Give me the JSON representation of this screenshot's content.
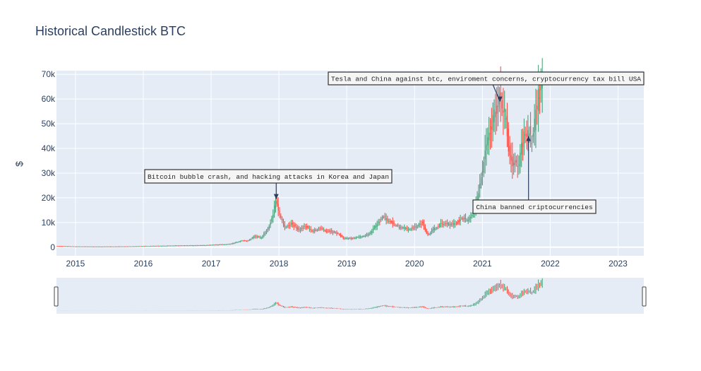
{
  "chart_data": {
    "type": "candlestick",
    "title": "Historical Candlestick BTC",
    "ylabel": "$",
    "xlim": [
      2014.72,
      2023.38
    ],
    "ylim": [
      -3500,
      71500
    ],
    "x_ticks": [
      2015,
      2016,
      2017,
      2018,
      2019,
      2020,
      2021,
      2022,
      2023
    ],
    "x_tick_labels": [
      "2015",
      "2016",
      "2017",
      "2018",
      "2019",
      "2020",
      "2021",
      "2022",
      "2023"
    ],
    "y_ticks": [
      0,
      10000,
      20000,
      30000,
      40000,
      50000,
      60000,
      70000
    ],
    "y_tick_labels": [
      "0",
      "10k",
      "20k",
      "30k",
      "40k",
      "50k",
      "60k",
      "70k"
    ],
    "increasing_color": "#3d9970",
    "decreasing_color": "#ff4136",
    "price_path": [
      [
        2014.72,
        450
      ],
      [
        2015.0,
        300
      ],
      [
        2015.3,
        240
      ],
      [
        2015.6,
        260
      ],
      [
        2015.85,
        330
      ],
      [
        2016.0,
        430
      ],
      [
        2016.5,
        650
      ],
      [
        2016.9,
        780
      ],
      [
        2017.1,
        1000
      ],
      [
        2017.3,
        1300
      ],
      [
        2017.45,
        2600
      ],
      [
        2017.55,
        2500
      ],
      [
        2017.65,
        4300
      ],
      [
        2017.75,
        3900
      ],
      [
        2017.85,
        7500
      ],
      [
        2017.92,
        13000
      ],
      [
        2017.96,
        19500
      ],
      [
        2018.0,
        15000
      ],
      [
        2018.05,
        11000
      ],
      [
        2018.1,
        8000
      ],
      [
        2018.2,
        9500
      ],
      [
        2018.3,
        7000
      ],
      [
        2018.4,
        8500
      ],
      [
        2018.5,
        6500
      ],
      [
        2018.6,
        7500
      ],
      [
        2018.75,
        6500
      ],
      [
        2018.88,
        5500
      ],
      [
        2018.95,
        3700
      ],
      [
        2019.1,
        3600
      ],
      [
        2019.25,
        4500
      ],
      [
        2019.35,
        5500
      ],
      [
        2019.45,
        9000
      ],
      [
        2019.5,
        11000
      ],
      [
        2019.55,
        12000
      ],
      [
        2019.65,
        10500
      ],
      [
        2019.75,
        8500
      ],
      [
        2019.82,
        8000
      ],
      [
        2019.92,
        7300
      ],
      [
        2020.05,
        8500
      ],
      [
        2020.12,
        10000
      ],
      [
        2020.2,
        5000
      ],
      [
        2020.3,
        7500
      ],
      [
        2020.4,
        9500
      ],
      [
        2020.6,
        9500
      ],
      [
        2020.7,
        11500
      ],
      [
        2020.8,
        11000
      ],
      [
        2020.9,
        16000
      ],
      [
        2020.97,
        25000
      ],
      [
        2021.03,
        35000
      ],
      [
        2021.1,
        45000
      ],
      [
        2021.15,
        50000
      ],
      [
        2021.2,
        55000
      ],
      [
        2021.26,
        62000
      ],
      [
        2021.32,
        56000
      ],
      [
        2021.37,
        48000
      ],
      [
        2021.4,
        37000
      ],
      [
        2021.45,
        35000
      ],
      [
        2021.5,
        33000
      ],
      [
        2021.55,
        32000
      ],
      [
        2021.58,
        40000
      ],
      [
        2021.65,
        47000
      ],
      [
        2021.7,
        48000
      ],
      [
        2021.72,
        44000
      ],
      [
        2021.75,
        42000
      ],
      [
        2021.8,
        55000
      ],
      [
        2021.85,
        63000
      ],
      [
        2021.88,
        66000
      ]
    ],
    "annotations": [
      {
        "text": "Bitcoin bubble crash, and hacking attacks in Korea and Japan",
        "x": 2017.96,
        "y": 19500
      },
      {
        "text": "Tesla and China against btc, enviroment concerns, cryptocurrency tax bill USA",
        "x": 2021.26,
        "y": 59000
      },
      {
        "text": "China banned criptocurrencies",
        "x": 2021.68,
        "y": 45000
      }
    ],
    "rangeslider": true
  }
}
